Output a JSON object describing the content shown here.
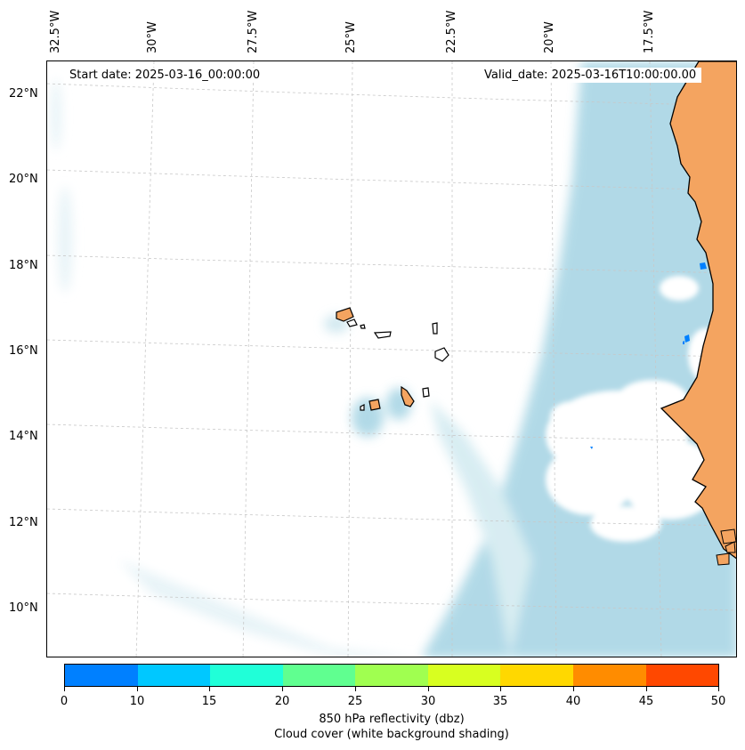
{
  "map": {
    "lon_labels": [
      "32.5°W",
      "30°W",
      "27.5°W",
      "25°W",
      "22.5°W",
      "20°W",
      "17.5°W"
    ],
    "lat_labels": [
      "22°N",
      "20°N",
      "18°N",
      "16°N",
      "14°N",
      "12°N",
      "10°N"
    ],
    "start_date": "Start date: 2025-03-16_00:00:00",
    "valid_date": "Valid_date: 2025-03-16T10:00:00.00",
    "land_color": "#f4a460",
    "cloud_color": "#add8e6",
    "ocean_color": "#ffffff",
    "grid": "on, dashed"
  },
  "colorbar": {
    "ticks": [
      "0",
      "10",
      "15",
      "20",
      "25",
      "30",
      "35",
      "40",
      "45",
      "50"
    ],
    "colors": [
      "#0080ff",
      "#00c8ff",
      "#20ffd8",
      "#60ff90",
      "#a0ff50",
      "#d8ff20",
      "#ffd800",
      "#ff8c00",
      "#ff4800"
    ],
    "label_line1": "850 hPa reflectivity (dbz)",
    "label_line2": "Cloud cover (white background shading)"
  }
}
